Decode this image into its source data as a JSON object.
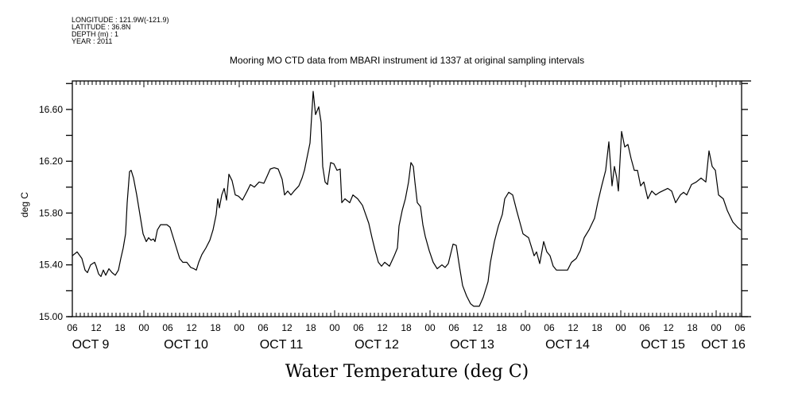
{
  "header": {
    "lines": [
      "LONGITUDE : 121.9W(-121.9)",
      "LATITUDE : 36.8N",
      "DEPTH (m) : 1",
      "YEAR : 2011"
    ]
  },
  "chart_data": {
    "type": "line",
    "title": "Mooring MO CTD data from MBARI instrument id 1337 at original sampling intervals",
    "xlabel": "Water Temperature (deg C)",
    "ylabel": "deg C",
    "x_units": "hours since OCT 9 06:00 2011",
    "xlim": [
      0,
      168.4
    ],
    "ylim": [
      15.0,
      16.82
    ],
    "yticks": [
      "15.00",
      "15.40",
      "15.80",
      "16.20",
      "16.60"
    ],
    "ytick_values": [
      15.0,
      15.4,
      15.8,
      16.2,
      16.6
    ],
    "xtick_labels": [
      "06",
      "12",
      "18",
      "00",
      "06",
      "12",
      "18",
      "00",
      "06",
      "12",
      "18",
      "00",
      "06",
      "12",
      "18",
      "00",
      "06",
      "12",
      "18",
      "00",
      "06",
      "12",
      "18",
      "00",
      "06",
      "12",
      "18",
      "00",
      "06"
    ],
    "date_labels": [
      "OCT  9",
      "OCT 10",
      "OCT 11",
      "OCT 12",
      "OCT 13",
      "OCT 14",
      "OCT 15",
      "OCT 16"
    ],
    "grid": false,
    "color": "#000000",
    "series": [
      {
        "name": "Water Temperature",
        "points": [
          [
            0,
            15.47
          ],
          [
            1.2,
            15.5
          ],
          [
            2.4,
            15.45
          ],
          [
            3.2,
            15.36
          ],
          [
            3.8,
            15.34
          ],
          [
            4.6,
            15.4
          ],
          [
            5.6,
            15.42
          ],
          [
            6,
            15.39
          ],
          [
            6.6,
            15.33
          ],
          [
            7.2,
            15.31
          ],
          [
            7.8,
            15.36
          ],
          [
            8.4,
            15.32
          ],
          [
            9.2,
            15.37
          ],
          [
            10,
            15.34
          ],
          [
            10.8,
            15.32
          ],
          [
            11.6,
            15.36
          ],
          [
            12.2,
            15.45
          ],
          [
            12.8,
            15.53
          ],
          [
            13.4,
            15.64
          ],
          [
            13.8,
            15.88
          ],
          [
            14.4,
            16.12
          ],
          [
            14.8,
            16.13
          ],
          [
            15.4,
            16.07
          ],
          [
            16.2,
            15.94
          ],
          [
            17,
            15.79
          ],
          [
            17.8,
            15.64
          ],
          [
            18.6,
            15.58
          ],
          [
            19.2,
            15.61
          ],
          [
            19.8,
            15.59
          ],
          [
            20.4,
            15.6
          ],
          [
            20.8,
            15.58
          ],
          [
            21.4,
            15.67
          ],
          [
            22.2,
            15.71
          ],
          [
            23.8,
            15.71
          ],
          [
            24.6,
            15.69
          ],
          [
            25.4,
            15.61
          ],
          [
            26.2,
            15.53
          ],
          [
            27,
            15.45
          ],
          [
            27.8,
            15.42
          ],
          [
            28.8,
            15.42
          ],
          [
            29.8,
            15.38
          ],
          [
            30.6,
            15.37
          ],
          [
            31.2,
            15.36
          ],
          [
            31.8,
            15.42
          ],
          [
            32.6,
            15.48
          ],
          [
            33.6,
            15.53
          ],
          [
            34.6,
            15.59
          ],
          [
            35.4,
            15.67
          ],
          [
            36.2,
            15.79
          ],
          [
            36.6,
            15.91
          ],
          [
            37,
            15.84
          ],
          [
            37.6,
            15.94
          ],
          [
            38.2,
            15.99
          ],
          [
            38.8,
            15.9
          ],
          [
            39.4,
            16.1
          ],
          [
            40.2,
            16.05
          ],
          [
            41,
            15.94
          ],
          [
            41.8,
            15.93
          ],
          [
            42.8,
            15.9
          ],
          [
            44,
            15.97
          ],
          [
            44.8,
            16.02
          ],
          [
            45.8,
            16
          ],
          [
            47,
            16.04
          ],
          [
            48.2,
            16.03
          ],
          [
            48.8,
            16.07
          ],
          [
            49.8,
            16.14
          ],
          [
            50.8,
            16.15
          ],
          [
            51.8,
            16.14
          ],
          [
            52.8,
            16.06
          ],
          [
            53.4,
            15.94
          ],
          [
            54.2,
            15.97
          ],
          [
            55,
            15.94
          ],
          [
            55.8,
            15.97
          ],
          [
            57,
            16.01
          ],
          [
            57.8,
            16.07
          ],
          [
            58.4,
            16.13
          ],
          [
            59,
            16.22
          ],
          [
            59.8,
            16.34
          ],
          [
            60.6,
            16.74
          ],
          [
            61.2,
            16.56
          ],
          [
            62,
            16.62
          ],
          [
            62.6,
            16.5
          ],
          [
            63,
            16.16
          ],
          [
            63.6,
            16.04
          ],
          [
            64.2,
            16.02
          ],
          [
            65,
            16.19
          ],
          [
            65.8,
            16.18
          ],
          [
            66.6,
            16.13
          ],
          [
            67.4,
            16.14
          ],
          [
            67.8,
            15.88
          ],
          [
            68.6,
            15.91
          ],
          [
            69.8,
            15.88
          ],
          [
            70.6,
            15.94
          ],
          [
            71.8,
            15.91
          ],
          [
            73,
            15.86
          ],
          [
            73.8,
            15.79
          ],
          [
            74.6,
            15.72
          ],
          [
            75.4,
            15.61
          ],
          [
            76.2,
            15.51
          ],
          [
            77,
            15.42
          ],
          [
            77.8,
            15.39
          ],
          [
            78.6,
            15.42
          ],
          [
            79.8,
            15.39
          ],
          [
            81,
            15.47
          ],
          [
            81.8,
            15.53
          ],
          [
            82.2,
            15.7
          ],
          [
            83,
            15.82
          ],
          [
            83.8,
            15.91
          ],
          [
            84.6,
            16.04
          ],
          [
            85.2,
            16.19
          ],
          [
            85.8,
            16.16
          ],
          [
            86.2,
            16.04
          ],
          [
            86.8,
            15.88
          ],
          [
            87.6,
            15.85
          ],
          [
            88.2,
            15.71
          ],
          [
            88.8,
            15.62
          ],
          [
            89.8,
            15.51
          ],
          [
            90.8,
            15.42
          ],
          [
            91.8,
            15.37
          ],
          [
            93,
            15.4
          ],
          [
            93.8,
            15.38
          ],
          [
            94.6,
            15.41
          ],
          [
            95.8,
            15.56
          ],
          [
            96.6,
            15.55
          ],
          [
            97.4,
            15.39
          ],
          [
            98.2,
            15.24
          ],
          [
            99.2,
            15.16
          ],
          [
            100.2,
            15.1
          ],
          [
            101,
            15.08
          ],
          [
            102.4,
            15.08
          ],
          [
            103.4,
            15.15
          ],
          [
            104.6,
            15.27
          ],
          [
            105.2,
            15.42
          ],
          [
            106.2,
            15.58
          ],
          [
            107.2,
            15.7
          ],
          [
            108.2,
            15.79
          ],
          [
            108.8,
            15.91
          ],
          [
            109.8,
            15.96
          ],
          [
            110.8,
            15.94
          ],
          [
            111.8,
            15.82
          ],
          [
            112.6,
            15.73
          ],
          [
            113.4,
            15.64
          ],
          [
            114.8,
            15.61
          ],
          [
            115.4,
            15.55
          ],
          [
            116.2,
            15.47
          ],
          [
            116.8,
            15.5
          ],
          [
            117.6,
            15.41
          ],
          [
            118.6,
            15.58
          ],
          [
            119.4,
            15.5
          ],
          [
            120.2,
            15.47
          ],
          [
            121,
            15.39
          ],
          [
            121.8,
            15.36
          ],
          [
            123,
            15.36
          ],
          [
            124.6,
            15.36
          ],
          [
            125.6,
            15.42
          ],
          [
            126.8,
            15.45
          ],
          [
            127.8,
            15.51
          ],
          [
            128.8,
            15.61
          ],
          [
            130,
            15.67
          ],
          [
            131.4,
            15.76
          ],
          [
            132.2,
            15.88
          ],
          [
            133.2,
            16.01
          ],
          [
            134.2,
            16.13
          ],
          [
            135,
            16.35
          ],
          [
            135.8,
            16.01
          ],
          [
            136.4,
            16.16
          ],
          [
            137,
            16.07
          ],
          [
            137.4,
            15.97
          ],
          [
            138.2,
            16.43
          ],
          [
            139,
            16.31
          ],
          [
            139.8,
            16.33
          ],
          [
            140.6,
            16.22
          ],
          [
            141.4,
            16.13
          ],
          [
            142.2,
            16.13
          ],
          [
            143,
            16.01
          ],
          [
            143.8,
            16.04
          ],
          [
            144.8,
            15.91
          ],
          [
            145.8,
            15.97
          ],
          [
            146.8,
            15.94
          ],
          [
            147.8,
            15.96
          ],
          [
            149.8,
            15.99
          ],
          [
            150.8,
            15.97
          ],
          [
            151.8,
            15.88
          ],
          [
            153,
            15.94
          ],
          [
            153.8,
            15.96
          ],
          [
            154.6,
            15.94
          ],
          [
            155.8,
            16.02
          ],
          [
            157,
            16.04
          ],
          [
            158.2,
            16.07
          ],
          [
            159.4,
            16.04
          ],
          [
            159.8,
            16.16
          ],
          [
            160.2,
            16.28
          ],
          [
            161,
            16.16
          ],
          [
            161.8,
            16.13
          ],
          [
            162.6,
            15.94
          ],
          [
            163.8,
            15.91
          ],
          [
            164.8,
            15.82
          ],
          [
            166.2,
            15.73
          ],
          [
            167.4,
            15.69
          ],
          [
            168.2,
            15.67
          ]
        ]
      }
    ]
  }
}
